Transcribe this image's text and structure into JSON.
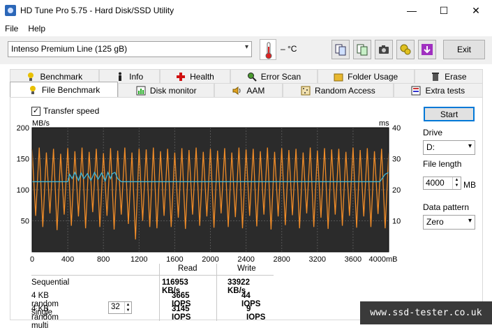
{
  "window": {
    "title": "HD Tune Pro 5.75 - Hard Disk/SSD Utility",
    "controls": [
      "—",
      "☐",
      "✕"
    ]
  },
  "menu": {
    "file": "File",
    "help": "Help"
  },
  "toolbar": {
    "drive": "Intenso Premium Line (125 gB)",
    "temperature": "– °C",
    "exit_label": "Exit",
    "icons": [
      "copy-info-icon",
      "copy-text-icon",
      "screenshot-icon",
      "options-icon",
      "download-icon"
    ]
  },
  "tabs": {
    "row1": [
      {
        "label": "Benchmark",
        "icon": "benchmark-icon"
      },
      {
        "label": "Info",
        "icon": "info-icon"
      },
      {
        "label": "Health",
        "icon": "health-icon"
      },
      {
        "label": "Error Scan",
        "icon": "error-scan-icon"
      },
      {
        "label": "Folder Usage",
        "icon": "folder-icon"
      },
      {
        "label": "Erase",
        "icon": "erase-icon"
      }
    ],
    "row2": [
      {
        "label": "File Benchmark",
        "icon": "file-benchmark-icon",
        "active": true
      },
      {
        "label": "Disk monitor",
        "icon": "disk-monitor-icon"
      },
      {
        "label": "AAM",
        "icon": "aam-icon"
      },
      {
        "label": "Random Access",
        "icon": "random-access-icon"
      },
      {
        "label": "Extra tests",
        "icon": "extra-tests-icon"
      }
    ]
  },
  "benchmark": {
    "transfer_speed_label": "Transfer speed",
    "transfer_speed_checked": true,
    "start_label": "Start",
    "drive_label": "Drive",
    "drive_value": "D:",
    "file_length_label": "File length",
    "file_length_value": "4000",
    "file_length_unit": "MB",
    "data_pattern_label": "Data pattern",
    "data_pattern_value": "Zero"
  },
  "chart_data": {
    "type": "line",
    "left_axis_label": "MB/s",
    "right_axis_label": "ms",
    "x_unit": "mB",
    "xlim": [
      0,
      4000
    ],
    "ylim_left": [
      0,
      200
    ],
    "ylim_right": [
      0,
      40
    ],
    "x_ticks": [
      "0",
      "400",
      "800",
      "1200",
      "1600",
      "2000",
      "2400",
      "2800",
      "3200",
      "3600",
      "4000"
    ],
    "y_ticks_left": [
      "200",
      "150",
      "100",
      "50"
    ],
    "y_ticks_right": [
      "40",
      "30",
      "20",
      "10"
    ],
    "colors": {
      "read": "#3fb7d8",
      "write": "#f08c28",
      "plot_bg": "#2b2b2b"
    },
    "series": [
      {
        "metric": "read speed (MB/s)",
        "x": [
          0,
          150,
          200,
          250,
          300,
          330,
          360,
          400,
          420,
          450,
          480,
          520,
          550,
          580,
          620,
          660,
          700,
          740,
          780,
          820,
          850,
          880,
          900,
          930,
          960,
          1000,
          1200,
          1600,
          2000,
          2400,
          2800,
          3200,
          3600,
          3900,
          3960,
          4000
        ],
        "y": [
          113,
          113,
          113,
          113,
          113,
          113,
          113,
          113,
          125,
          118,
          128,
          115,
          127,
          118,
          126,
          115,
          128,
          117,
          127,
          114,
          128,
          118,
          126,
          128,
          118,
          113,
          113,
          113,
          113,
          113,
          113,
          113,
          113,
          113,
          125,
          128
        ]
      },
      {
        "metric": "write speed (MB/s)",
        "x_step": 40,
        "y": [
          165,
          58,
          168,
          40,
          160,
          62,
          166,
          35,
          158,
          60,
          167,
          42,
          162,
          57,
          168,
          38,
          161,
          64,
          166,
          40,
          159,
          58,
          167,
          36,
          163,
          60,
          168,
          45,
          160,
          20,
          166,
          50,
          165,
          40,
          168,
          38,
          162,
          58,
          166,
          40,
          160,
          55,
          167,
          37,
          164,
          60,
          168,
          42,
          161,
          57,
          166,
          39,
          163,
          62,
          167,
          40,
          160,
          56,
          168,
          38,
          165,
          58,
          166,
          41,
          162,
          60,
          168,
          36,
          161,
          57,
          167,
          43,
          164,
          59,
          166,
          38,
          160,
          62,
          168,
          40,
          163,
          55,
          167,
          37,
          165,
          60,
          166,
          42,
          161,
          58,
          168,
          39,
          164,
          57,
          167,
          40,
          162,
          61,
          166,
          38,
          160
        ]
      }
    ]
  },
  "results": {
    "headers": {
      "read": "Read",
      "write": "Write"
    },
    "rows": [
      {
        "label": "Sequential",
        "read": "116953 KB/s",
        "write": "33922 KB/s"
      },
      {
        "label": "4 KB random single",
        "read": "3665 IOPS",
        "write": "44 IOPS"
      },
      {
        "label": "4 KB random multi",
        "read": "3145 IOPS",
        "write": "9 IOPS"
      }
    ],
    "multi_queue_value": "32"
  },
  "watermark": "www.ssd-tester.co.uk"
}
